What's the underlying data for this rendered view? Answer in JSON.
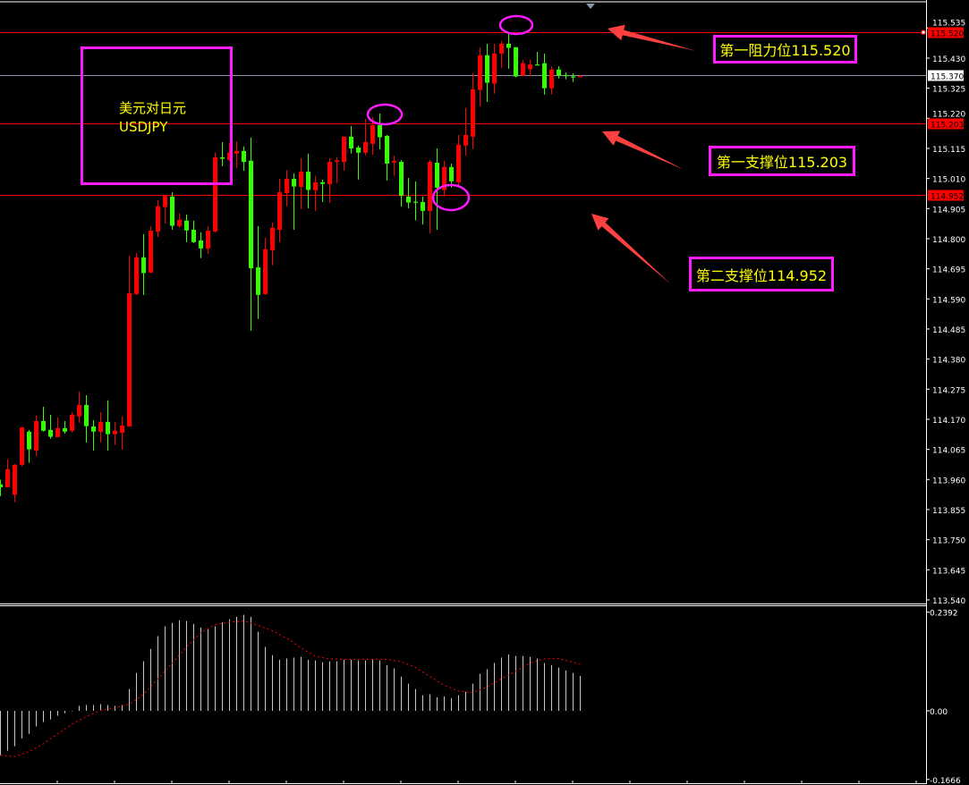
{
  "symbol_box": {
    "title_cn": "美元对日元",
    "title_en": "USDJPY"
  },
  "annotations": [
    {
      "label": "第一阻力位115.520",
      "price": 115.52
    },
    {
      "label": "第一支撑位115.203",
      "price": 115.203
    },
    {
      "label": "第二支撑位114.952",
      "price": 114.952
    }
  ],
  "colors": {
    "background": "#000000",
    "bull": "#ff0000",
    "bear": "#33ff00",
    "level_line": "#ff0000",
    "bid_line": "#8a96a8",
    "annotation_border": "#ff1aff",
    "annotation_text": "#ffff00",
    "arrow": "#ff4040",
    "histogram": "#c8c8c8",
    "signal": "#ff0000"
  },
  "chart_data": [
    {
      "type": "candlestick",
      "title": "",
      "grid": false,
      "ylim": [
        113.54,
        115.59
      ],
      "y_ticks": [
        "113.540",
        "113.645",
        "113.750",
        "113.855",
        "113.960",
        "114.065",
        "114.170",
        "114.275",
        "114.380",
        "114.485",
        "114.590",
        "114.695",
        "114.800",
        "114.905",
        "115.010",
        "115.115",
        "115.220",
        "115.325",
        "115.430",
        "115.535"
      ],
      "levels": [
        {
          "price": 115.52,
          "label": "115.520",
          "style": "red"
        },
        {
          "price": 115.37,
          "label": "115.370",
          "style": "bid"
        },
        {
          "price": 115.203,
          "label": "115.203",
          "style": "red"
        },
        {
          "price": 114.952,
          "label": "114.952",
          "style": "red"
        }
      ],
      "circled_bars": [
        71,
        53,
        58
      ],
      "candles_ohlc": [
        [
          113.943,
          113.959,
          113.902,
          113.933
        ],
        [
          113.933,
          114.03,
          113.933,
          113.996
        ],
        [
          113.907,
          114.014,
          113.881,
          114.011
        ],
        [
          114.011,
          114.142,
          114.006,
          114.142
        ],
        [
          114.127,
          114.133,
          114.018,
          114.065
        ],
        [
          114.061,
          114.183,
          114.042,
          114.164
        ],
        [
          114.164,
          114.214,
          114.127,
          114.13
        ],
        [
          114.133,
          114.186,
          114.102,
          114.109
        ],
        [
          114.108,
          114.176,
          114.108,
          114.139
        ],
        [
          114.139,
          114.164,
          114.12,
          114.127
        ],
        [
          114.13,
          114.195,
          114.124,
          114.186
        ],
        [
          114.18,
          114.267,
          114.158,
          114.22
        ],
        [
          114.22,
          114.254,
          114.089,
          114.146
        ],
        [
          114.145,
          114.167,
          114.061,
          114.127
        ],
        [
          114.126,
          114.195,
          114.089,
          114.161
        ],
        [
          114.161,
          114.236,
          114.061,
          114.118
        ],
        [
          114.118,
          114.161,
          114.08,
          114.13
        ],
        [
          114.123,
          114.18,
          114.064,
          114.148
        ],
        [
          114.145,
          114.741,
          114.145,
          114.61
        ],
        [
          114.607,
          114.75,
          114.604,
          114.735
        ],
        [
          114.735,
          114.816,
          114.604,
          114.68
        ],
        [
          114.682,
          114.844,
          114.679,
          114.828
        ],
        [
          114.825,
          114.934,
          114.806,
          114.913
        ],
        [
          114.91,
          114.953,
          114.853,
          114.95
        ],
        [
          114.947,
          114.962,
          114.831,
          114.845
        ],
        [
          114.844,
          114.888,
          114.838,
          114.866
        ],
        [
          114.863,
          114.884,
          114.788,
          114.829
        ],
        [
          114.831,
          114.863,
          114.785,
          114.788
        ],
        [
          114.794,
          114.822,
          114.732,
          114.766
        ],
        [
          114.766,
          114.844,
          114.747,
          114.828
        ],
        [
          114.825,
          115.1,
          114.822,
          115.084
        ],
        [
          115.084,
          115.137,
          115.053,
          115.079
        ],
        [
          115.075,
          115.134,
          115.072,
          115.1
        ],
        [
          115.097,
          115.14,
          115.047,
          115.106
        ],
        [
          115.106,
          115.122,
          115.037,
          115.068
        ],
        [
          115.072,
          115.153,
          114.479,
          114.697
        ],
        [
          114.7,
          114.844,
          114.52,
          114.604
        ],
        [
          114.607,
          114.803,
          114.604,
          114.763
        ],
        [
          114.76,
          114.856,
          114.707,
          114.838
        ],
        [
          114.831,
          115.009,
          114.788,
          114.962
        ],
        [
          114.959,
          115.04,
          114.913,
          115.009
        ],
        [
          115.009,
          115.028,
          114.831,
          114.982
        ],
        [
          114.981,
          115.081,
          114.903,
          115.034
        ],
        [
          115.034,
          115.097,
          114.906,
          114.97
        ],
        [
          114.969,
          115.019,
          114.897,
          114.997
        ],
        [
          114.997,
          115.006,
          114.928,
          114.991
        ],
        [
          114.99,
          115.081,
          114.925,
          115.068
        ],
        [
          115.068,
          115.085,
          114.994,
          115.073
        ],
        [
          115.068,
          115.156,
          115.037,
          115.156
        ],
        [
          115.156,
          115.193,
          115.097,
          115.115
        ],
        [
          115.118,
          115.125,
          115.006,
          115.1
        ],
        [
          115.1,
          115.218,
          115.09,
          115.137
        ],
        [
          115.131,
          115.224,
          115.093,
          115.196
        ],
        [
          115.196,
          115.237,
          115.112,
          115.154
        ],
        [
          115.159,
          115.162,
          115.003,
          115.062
        ],
        [
          115.066,
          115.09,
          115.019,
          115.072
        ],
        [
          115.068,
          115.075,
          114.912,
          114.95
        ],
        [
          114.947,
          115.012,
          114.906,
          114.926
        ],
        [
          114.929,
          115.0,
          114.864,
          114.926
        ],
        [
          114.928,
          114.947,
          114.85,
          114.897
        ],
        [
          114.897,
          115.075,
          114.819,
          115.068
        ],
        [
          115.065,
          115.115,
          114.831,
          114.978
        ],
        [
          114.97,
          115.072,
          114.947,
          115.05
        ],
        [
          115.05,
          115.062,
          114.978,
          115.0
        ],
        [
          114.997,
          115.162,
          114.978,
          115.128
        ],
        [
          115.125,
          115.256,
          115.09,
          115.162
        ],
        [
          115.156,
          115.377,
          115.112,
          115.321
        ],
        [
          115.319,
          115.468,
          115.262,
          115.44
        ],
        [
          115.44,
          115.48,
          115.277,
          115.344
        ],
        [
          115.341,
          115.48,
          115.306,
          115.446
        ],
        [
          115.446,
          115.49,
          115.396,
          115.48
        ],
        [
          115.48,
          115.514,
          115.393,
          115.466
        ],
        [
          115.468,
          115.468,
          115.363,
          115.366
        ],
        [
          115.369,
          115.424,
          115.366,
          115.412
        ],
        [
          115.391,
          115.424,
          115.366,
          115.408
        ],
        [
          115.408,
          115.452,
          115.405,
          115.405
        ],
        [
          115.412,
          115.446,
          115.303,
          115.325
        ],
        [
          115.325,
          115.402,
          115.303,
          115.39
        ],
        [
          115.39,
          115.402,
          115.359,
          115.369
        ],
        [
          115.371,
          115.38,
          115.356,
          115.367
        ],
        [
          115.366,
          115.377,
          115.347,
          115.363
        ],
        [
          115.363,
          115.371,
          115.363,
          115.367
        ]
      ]
    },
    {
      "type": "bar+line",
      "title": "",
      "ylim": [
        -0.1666,
        0.2392
      ],
      "y_ticks": [
        "0.2392",
        "0.00",
        "-0.1666"
      ],
      "histogram": [
        -0.108,
        -0.097,
        -0.086,
        -0.067,
        -0.056,
        -0.038,
        -0.027,
        -0.021,
        -0.012,
        -0.006,
        -0.001,
        0.012,
        0.014,
        0.014,
        0.016,
        0.014,
        0.012,
        0.014,
        0.053,
        0.092,
        0.12,
        0.15,
        0.181,
        0.205,
        0.213,
        0.22,
        0.218,
        0.211,
        0.202,
        0.198,
        0.205,
        0.215,
        0.222,
        0.228,
        0.233,
        0.228,
        0.192,
        0.155,
        0.135,
        0.124,
        0.127,
        0.129,
        0.131,
        0.124,
        0.122,
        0.118,
        0.12,
        0.12,
        0.124,
        0.124,
        0.122,
        0.122,
        0.124,
        0.122,
        0.111,
        0.103,
        0.083,
        0.066,
        0.053,
        0.038,
        0.04,
        0.033,
        0.035,
        0.031,
        0.038,
        0.046,
        0.066,
        0.09,
        0.101,
        0.116,
        0.129,
        0.137,
        0.133,
        0.133,
        0.131,
        0.127,
        0.116,
        0.111,
        0.105,
        0.098,
        0.092,
        0.085
      ],
      "signal_points": [
        [
          0,
          -0.108
        ],
        [
          2,
          -0.111
        ],
        [
          4,
          -0.099
        ],
        [
          6,
          -0.08
        ],
        [
          8,
          -0.056
        ],
        [
          10,
          -0.032
        ],
        [
          12,
          -0.014
        ],
        [
          14,
          0.001
        ],
        [
          16,
          0.007
        ],
        [
          18,
          0.016
        ],
        [
          20,
          0.04
        ],
        [
          22,
          0.077
        ],
        [
          24,
          0.116
        ],
        [
          26,
          0.155
        ],
        [
          28,
          0.189
        ],
        [
          30,
          0.209
        ],
        [
          32,
          0.215
        ],
        [
          34,
          0.218
        ],
        [
          36,
          0.207
        ],
        [
          38,
          0.194
        ],
        [
          40,
          0.176
        ],
        [
          42,
          0.153
        ],
        [
          44,
          0.132
        ],
        [
          46,
          0.126
        ],
        [
          48,
          0.125
        ],
        [
          50,
          0.125
        ],
        [
          52,
          0.125
        ],
        [
          54,
          0.125
        ],
        [
          56,
          0.119
        ],
        [
          58,
          0.105
        ],
        [
          60,
          0.083
        ],
        [
          62,
          0.062
        ],
        [
          64,
          0.048
        ],
        [
          66,
          0.044
        ],
        [
          68,
          0.058
        ],
        [
          70,
          0.078
        ],
        [
          72,
          0.096
        ],
        [
          74,
          0.116
        ],
        [
          76,
          0.126
        ],
        [
          78,
          0.127
        ],
        [
          80,
          0.118
        ],
        [
          81,
          0.113
        ]
      ]
    }
  ]
}
